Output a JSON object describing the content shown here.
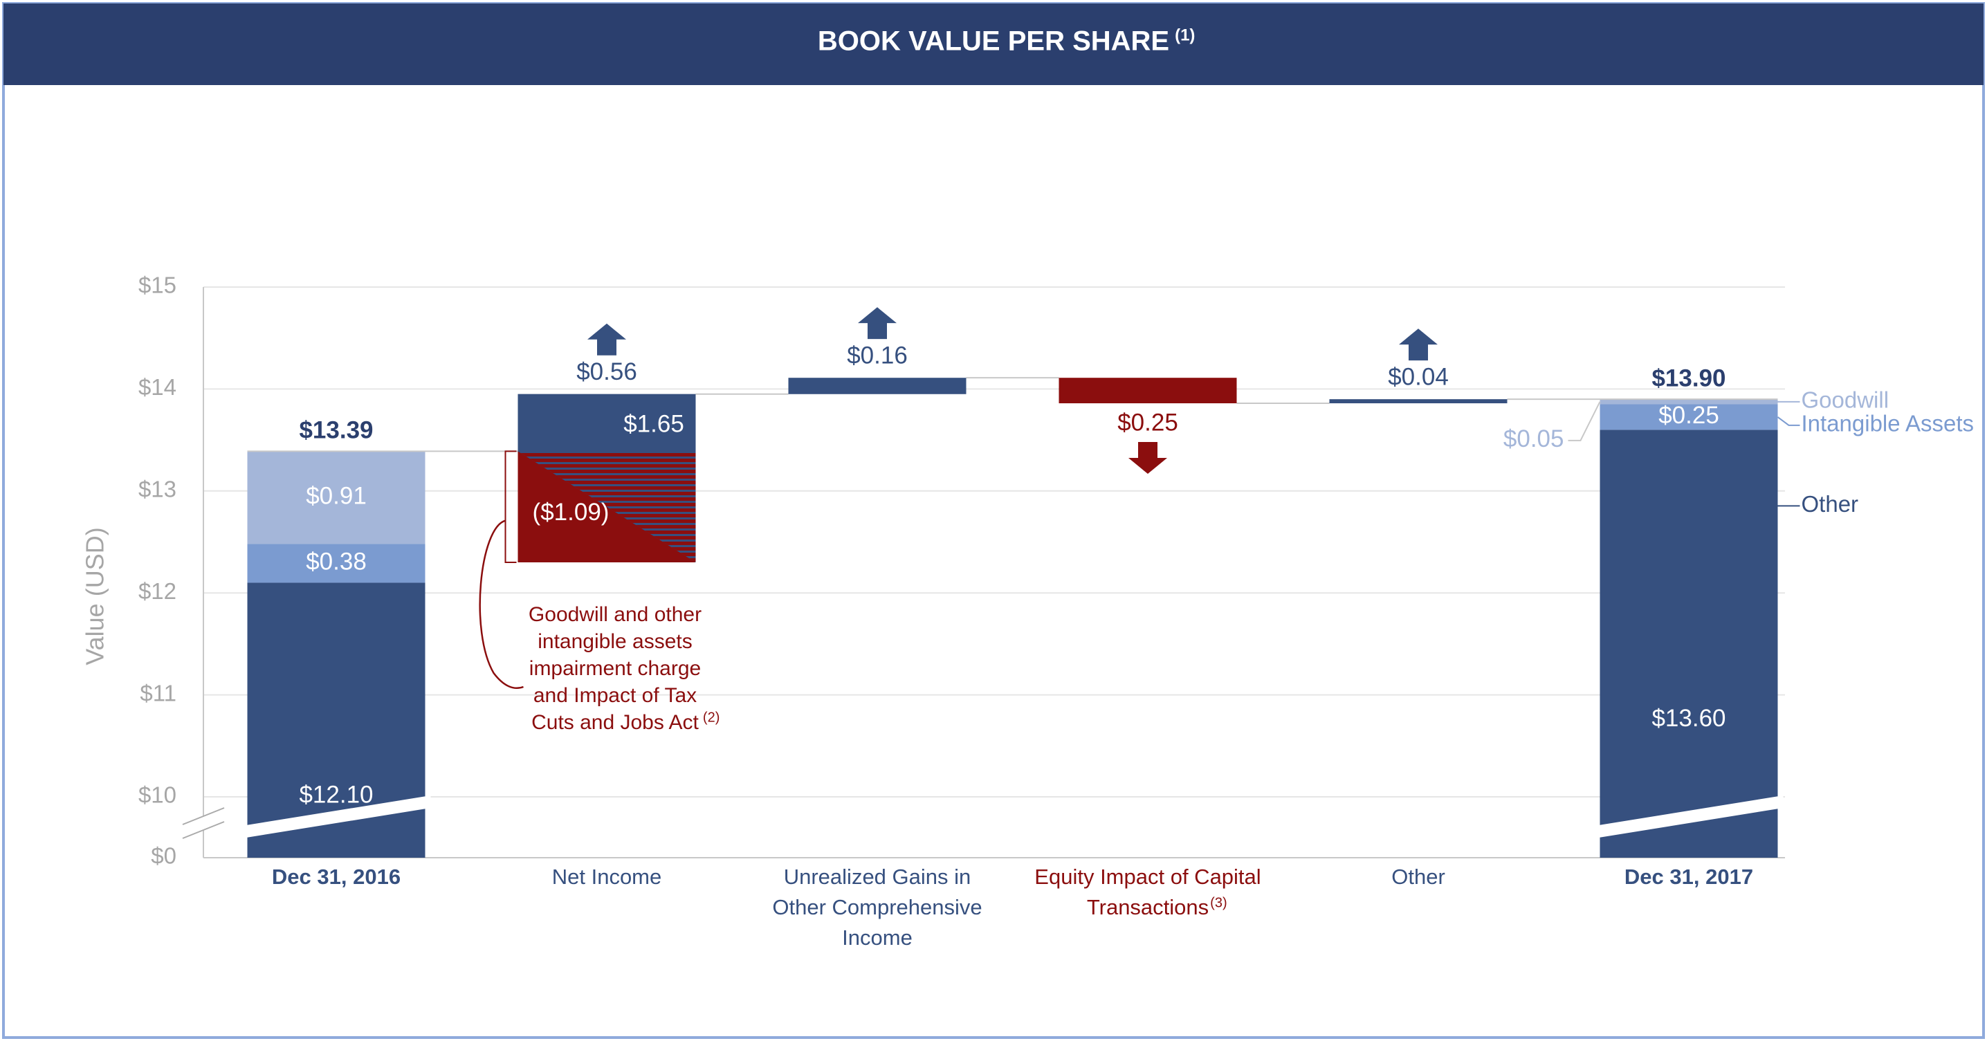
{
  "chart_data": {
    "type": "waterfall",
    "title": "BOOK VALUE PER SHARE",
    "title_note": "(1)",
    "y_label": "Value (USD)",
    "ylim": [
      0,
      15
    ],
    "axis_break": [
      0,
      10
    ],
    "yticks": [
      {
        "value": 0,
        "label": "$0"
      },
      {
        "value": 10,
        "label": "$10"
      },
      {
        "value": 11,
        "label": "$11"
      },
      {
        "value": 12,
        "label": "$12"
      },
      {
        "value": 13,
        "label": "$13"
      },
      {
        "value": 14,
        "label": "$14"
      },
      {
        "value": 15,
        "label": "$15"
      }
    ],
    "grid": true,
    "categories": [
      "Dec 31, 2016",
      "Net Income",
      "Unrealized Gains in Other Comprehensive Income",
      "Equity Impact of Capital Transactions",
      "Other",
      "Dec 31, 2017"
    ],
    "category_notes": [
      null,
      null,
      null,
      "(3)",
      null,
      null
    ],
    "series": [
      {
        "name": "Other",
        "color": "#36507f",
        "values": [
          12.1,
          null,
          null,
          null,
          null,
          13.6
        ],
        "value_labels": [
          "$12.10",
          null,
          null,
          null,
          null,
          "$13.60"
        ]
      },
      {
        "name": "Intangible Assets",
        "color": "#7b9bd0",
        "values": [
          0.38,
          null,
          null,
          null,
          null,
          0.25
        ],
        "value_labels": [
          "$0.38",
          null,
          null,
          null,
          null,
          "$0.25"
        ]
      },
      {
        "name": "Goodwill",
        "color": "#a4b6d9",
        "values": [
          0.91,
          null,
          null,
          null,
          null,
          0.05
        ],
        "value_labels": [
          "$0.91",
          null,
          null,
          null,
          null,
          "$0.05"
        ]
      }
    ],
    "totals": [
      13.39,
      null,
      null,
      null,
      null,
      13.9
    ],
    "total_labels": [
      "$13.39",
      null,
      null,
      null,
      null,
      "$13.90"
    ],
    "changes": [
      null,
      0.56,
      0.16,
      -0.25,
      0.04,
      null
    ],
    "change_labels": [
      null,
      "$0.56",
      "$0.16",
      "$0.25",
      "$0.04",
      null
    ],
    "gains": [
      null,
      1.65,
      null,
      null,
      null,
      null
    ],
    "gain_labels": [
      null,
      "$1.65",
      null,
      null,
      null,
      null
    ],
    "charges": [
      null,
      -1.09,
      null,
      null,
      null,
      null
    ],
    "charge_labels": [
      null,
      "($1.09)",
      null,
      null,
      null,
      null
    ],
    "up_color": "#36507f",
    "down_color": "#8b0e0e",
    "annotation": {
      "text": "Goodwill and other intangible assets impairment charge and Impact of Tax Cuts and Jobs Act",
      "note": "(2)"
    }
  }
}
